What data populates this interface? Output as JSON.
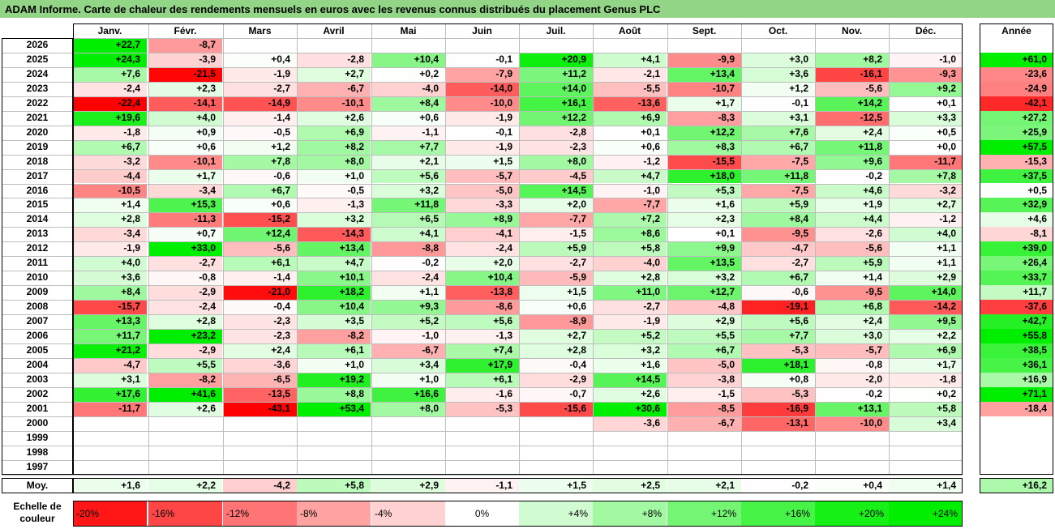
{
  "title": "ADAM Informe. Carte de chaleur des rendements mensuels en euros avec les revenus connus distribués du placement Genus PLC",
  "chart_data": {
    "type": "heatmap",
    "columns": [
      "Janv.",
      "Févr.",
      "Mars",
      "Avril",
      "Mai",
      "Juin",
      "Juil.",
      "Août",
      "Sept.",
      "Oct.",
      "Nov.",
      "Déc."
    ],
    "year_header": "Année",
    "rows": [
      {
        "year": "2026",
        "values": [
          "+22,7",
          "-8,7",
          "",
          "",
          "",
          "",
          "",
          "",
          "",
          "",
          "",
          ""
        ],
        "annual": ""
      },
      {
        "year": "2025",
        "values": [
          "+24,3",
          "-3,9",
          "+0,4",
          "-2,8",
          "+10,4",
          "-0,1",
          "+20,9",
          "+4,1",
          "-9,9",
          "+3,0",
          "+8,2",
          "-1,0"
        ],
        "annual": "+61,0"
      },
      {
        "year": "2024",
        "values": [
          "+7,6",
          "-21,5",
          "-1,9",
          "+2,7",
          "+0,2",
          "-7,9",
          "+11,2",
          "-2,1",
          "+13,4",
          "+3,6",
          "-16,1",
          "-9,3"
        ],
        "annual": "-23,6"
      },
      {
        "year": "2023",
        "values": [
          "-2,4",
          "+2,3",
          "-2,7",
          "-6,7",
          "-4,0",
          "-14,0",
          "+14,0",
          "-5,5",
          "-10,7",
          "+1,2",
          "-5,6",
          "+9,2"
        ],
        "annual": "-24,9"
      },
      {
        "year": "2022",
        "values": [
          "-22,4",
          "-14,1",
          "-14,9",
          "-10,1",
          "+8,4",
          "-10,0",
          "+16,1",
          "-13,6",
          "+1,7",
          "-0,1",
          "+14,2",
          "+0,1"
        ],
        "annual": "-42,1"
      },
      {
        "year": "2021",
        "values": [
          "+19,6",
          "+4,0",
          "-1,4",
          "+2,6",
          "+0,6",
          "-1,9",
          "+12,2",
          "+6,9",
          "-8,3",
          "+3,1",
          "-12,5",
          "+3,3"
        ],
        "annual": "+27,2"
      },
      {
        "year": "2020",
        "values": [
          "-1,8",
          "+0,9",
          "-0,5",
          "+6,9",
          "-1,1",
          "-0,1",
          "-2,8",
          "+0,1",
          "+12,2",
          "+7,6",
          "+2,4",
          "+0,5"
        ],
        "annual": "+25,9"
      },
      {
        "year": "2019",
        "values": [
          "+6,7",
          "+0,6",
          "+1,2",
          "+8,2",
          "+7,7",
          "-1,9",
          "-2,3",
          "+0,6",
          "+8,3",
          "+6,7",
          "+11,8",
          "+0,0"
        ],
        "annual": "+57,5"
      },
      {
        "year": "2018",
        "values": [
          "-3,2",
          "-10,1",
          "+7,8",
          "+8,0",
          "+2,1",
          "+1,5",
          "+8,0",
          "-1,2",
          "-15,5",
          "-7,5",
          "+9,6",
          "-11,7"
        ],
        "annual": "-15,3"
      },
      {
        "year": "2017",
        "values": [
          "-4,4",
          "+1,7",
          "-0,6",
          "+1,0",
          "+5,6",
          "-5,7",
          "-4,5",
          "+4,7",
          "+18,0",
          "+11,8",
          "-0,2",
          "+7,8"
        ],
        "annual": "+37,5"
      },
      {
        "year": "2016",
        "values": [
          "-10,5",
          "-3,4",
          "+6,7",
          "-0,5",
          "+3,2",
          "-5,0",
          "+14,5",
          "-1,0",
          "+5,3",
          "-7,5",
          "+4,6",
          "-3,2"
        ],
        "annual": "+0,5"
      },
      {
        "year": "2015",
        "values": [
          "+1,4",
          "+15,3",
          "+0,6",
          "-1,3",
          "+11,8",
          "-3,3",
          "+2,0",
          "-7,7",
          "+1,6",
          "+5,9",
          "+1,9",
          "+2,7"
        ],
        "annual": "+32,9"
      },
      {
        "year": "2014",
        "values": [
          "+2,8",
          "-11,3",
          "-15,2",
          "+3,2",
          "+6,5",
          "+8,9",
          "-7,7",
          "+7,2",
          "+2,3",
          "+8,4",
          "+4,4",
          "-1,2"
        ],
        "annual": "+4,6"
      },
      {
        "year": "2013",
        "values": [
          "-3,4",
          "+0,7",
          "+12,4",
          "-14,3",
          "+4,1",
          "-4,1",
          "-1,5",
          "+8,6",
          "+0,1",
          "-9,5",
          "-2,6",
          "+4,0"
        ],
        "annual": "-8,1"
      },
      {
        "year": "2012",
        "values": [
          "-1,9",
          "+33,0",
          "-5,6",
          "+13,4",
          "-8,8",
          "-2,4",
          "+5,9",
          "+5,8",
          "+9,9",
          "-4,7",
          "-5,6",
          "+1,1"
        ],
        "annual": "+39,0"
      },
      {
        "year": "2011",
        "values": [
          "+4,0",
          "-2,7",
          "+6,1",
          "+4,7",
          "-0,2",
          "+2,0",
          "-2,7",
          "-4,0",
          "+13,5",
          "-2,7",
          "+5,9",
          "+1,1"
        ],
        "annual": "+26,4"
      },
      {
        "year": "2010",
        "values": [
          "+3,6",
          "-0,8",
          "-1,4",
          "+10,1",
          "-2,4",
          "+10,4",
          "-5,9",
          "+2,8",
          "+3,2",
          "+6,7",
          "+1,4",
          "+2,9"
        ],
        "annual": "+33,7"
      },
      {
        "year": "2009",
        "values": [
          "+8,4",
          "-2,9",
          "-21,0",
          "+18,2",
          "+1,1",
          "-13,8",
          "+1,5",
          "+11,0",
          "+12,7",
          "-0,6",
          "-9,5",
          "+14,0"
        ],
        "annual": "+11,7"
      },
      {
        "year": "2008",
        "values": [
          "-15,7",
          "-2,4",
          "-0,4",
          "+10,4",
          "+9,3",
          "-8,6",
          "+0,6",
          "-2,7",
          "-4,8",
          "-19,1",
          "+6,8",
          "-14,2"
        ],
        "annual": "-37,6"
      },
      {
        "year": "2007",
        "values": [
          "+13,3",
          "+2,8",
          "-2,3",
          "+3,5",
          "+5,2",
          "+5,6",
          "-8,9",
          "-1,9",
          "+2,9",
          "+5,6",
          "+2,4",
          "+9,5"
        ],
        "annual": "+42,7"
      },
      {
        "year": "2006",
        "values": [
          "+11,7",
          "+23,2",
          "-2,3",
          "-8,2",
          "-1,0",
          "-1,3",
          "+2,7",
          "+5,2",
          "+5,5",
          "+7,7",
          "+3,0",
          "+2,2"
        ],
        "annual": "+55,8"
      },
      {
        "year": "2005",
        "values": [
          "+21,2",
          "-2,9",
          "+2,4",
          "+6,1",
          "-6,7",
          "+7,4",
          "+2,8",
          "+3,2",
          "+6,7",
          "-5,3",
          "-5,7",
          "+6,9"
        ],
        "annual": "+38,5"
      },
      {
        "year": "2004",
        "values": [
          "-4,7",
          "+5,5",
          "-3,6",
          "+1,0",
          "+3,4",
          "+17,9",
          "-0,4",
          "+1,6",
          "-5,0",
          "+18,1",
          "-0,8",
          "+1,7"
        ],
        "annual": "+36,1"
      },
      {
        "year": "2003",
        "values": [
          "+3,1",
          "-8,2",
          "-6,5",
          "+19,2",
          "+1,0",
          "+6,1",
          "-2,9",
          "+14,5",
          "-3,8",
          "+0,8",
          "-2,0",
          "-1,8"
        ],
        "annual": "+16,9"
      },
      {
        "year": "2002",
        "values": [
          "+17,6",
          "+41,6",
          "-13,5",
          "+8,8",
          "+16,6",
          "-1,6",
          "-0,7",
          "+2,6",
          "-1,5",
          "-5,3",
          "-0,2",
          "+0,2"
        ],
        "annual": "+71,1"
      },
      {
        "year": "2001",
        "values": [
          "-11,7",
          "+2,6",
          "-43,1",
          "+53,4",
          "+8,0",
          "-5,3",
          "-15,6",
          "+30,6",
          "-8,5",
          "-16,9",
          "+13,1",
          "+5,8"
        ],
        "annual": "-18,4"
      },
      {
        "year": "2000",
        "values": [
          "",
          "",
          "",
          "",
          "",
          "",
          "",
          "-3,6",
          "-6,7",
          "-13,1",
          "-10,0",
          "+3,4"
        ],
        "annual": ""
      },
      {
        "year": "1999",
        "values": [
          "",
          "",
          "",
          "",
          "",
          "",
          "",
          "",
          "",
          "",
          "",
          ""
        ],
        "annual": ""
      },
      {
        "year": "1998",
        "values": [
          "",
          "",
          "",
          "",
          "",
          "",
          "",
          "",
          "",
          "",
          "",
          ""
        ],
        "annual": ""
      },
      {
        "year": "1997",
        "values": [
          "",
          "",
          "",
          "",
          "",
          "",
          "",
          "",
          "",
          "",
          "",
          ""
        ],
        "annual": ""
      }
    ],
    "average": {
      "label": "Moy.",
      "values": [
        "+1,6",
        "+2,2",
        "-4,2",
        "+5,8",
        "+2,9",
        "-1,1",
        "+1,5",
        "+2,5",
        "+2,1",
        "-0,2",
        "+0,4",
        "+1,4"
      ],
      "annual": "+16,2"
    },
    "scale": {
      "label_line1": "Echelle de",
      "label_line2": "couleur",
      "steps": [
        {
          "label": "-20%",
          "value": -20
        },
        {
          "label": "-16%",
          "value": -16
        },
        {
          "label": "-12%",
          "value": -12
        },
        {
          "label": "-8%",
          "value": -8
        },
        {
          "label": "-4%",
          "value": -4
        },
        {
          "label": "0%",
          "value": 0
        },
        {
          "label": "+4%",
          "value": 4
        },
        {
          "label": "+8%",
          "value": 8
        },
        {
          "label": "+12%",
          "value": 12
        },
        {
          "label": "+16%",
          "value": 16
        },
        {
          "label": "+20%",
          "value": 20
        },
        {
          "label": "+24%",
          "value": 24
        }
      ]
    },
    "colors": {
      "negative": "#ff0000",
      "neutral": "#ffffff",
      "positive": "#00ee00",
      "header_bar": "#92d586"
    }
  }
}
